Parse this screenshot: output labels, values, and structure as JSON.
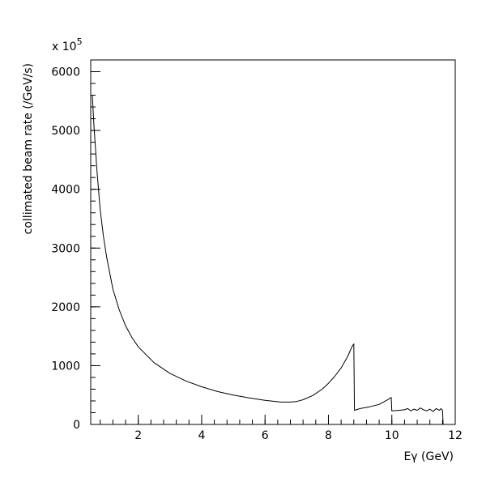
{
  "chart_data": {
    "type": "line",
    "title": "",
    "xlabel": "Eγ (GeV)",
    "ylabel": "collimated beam rate (/GeV/s)",
    "y_multiplier_label": "x 10",
    "y_multiplier_exponent": "5",
    "xlim": [
      0.5,
      12
    ],
    "ylim": [
      0,
      6200
    ],
    "x_major_ticks": [
      2,
      4,
      6,
      8,
      10,
      12
    ],
    "x_tick_labels": [
      "2",
      "4",
      "6",
      "8",
      "10",
      "12"
    ],
    "y_major_ticks": [
      0,
      1000,
      2000,
      3000,
      4000,
      5000,
      6000
    ],
    "y_tick_labels": [
      "0",
      "1000",
      "2000",
      "3000",
      "4000",
      "5000",
      "6000"
    ],
    "grid": false,
    "legend": "none",
    "series": [
      {
        "x": [
          0.55,
          0.6,
          0.7,
          0.8,
          0.9,
          1.0,
          1.2,
          1.4,
          1.6,
          1.8,
          2.0,
          2.5,
          3.0,
          3.5,
          4.0,
          4.5,
          5.0,
          5.5,
          6.0,
          6.5,
          6.8,
          7.0,
          7.2,
          7.5,
          7.8,
          8.0,
          8.2,
          8.4,
          8.6,
          8.75,
          8.8,
          8.82,
          9.0,
          9.3,
          9.6,
          9.9,
          9.98,
          10.0,
          10.2,
          10.4,
          10.5,
          10.6,
          10.7,
          10.8,
          10.9,
          11.0,
          11.1,
          11.2,
          11.3,
          11.4,
          11.5,
          11.55,
          11.6,
          11.62
        ],
        "y": [
          5600,
          5100,
          4300,
          3650,
          3200,
          2850,
          2300,
          1950,
          1680,
          1480,
          1320,
          1050,
          870,
          740,
          640,
          560,
          500,
          450,
          410,
          380,
          380,
          390,
          420,
          490,
          600,
          700,
          820,
          960,
          1150,
          1330,
          1370,
          240,
          270,
          300,
          340,
          430,
          460,
          230,
          240,
          250,
          270,
          230,
          260,
          240,
          280,
          250,
          230,
          260,
          220,
          270,
          240,
          270,
          240,
          0
        ]
      }
    ]
  }
}
